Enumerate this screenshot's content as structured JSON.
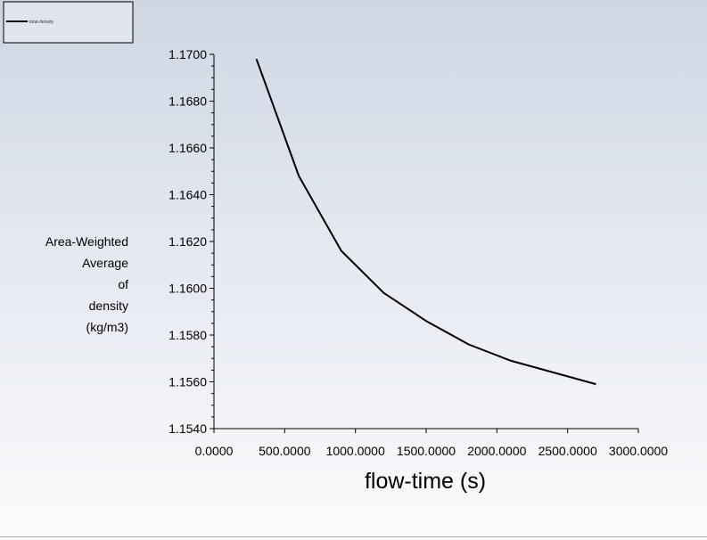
{
  "chart_data": {
    "type": "line",
    "title": "",
    "xlabel": "flow-time (s)",
    "ylabel_lines": [
      "Area-Weighted",
      "Average",
      "of",
      "density",
      "(kg/m3)"
    ],
    "xlim": [
      0,
      3000
    ],
    "ylim": [
      1.154,
      1.17
    ],
    "x_ticks": [
      0,
      500,
      1000,
      1500,
      2000,
      2500,
      3000
    ],
    "x_tick_labels": [
      "0.0000",
      "500.0000",
      "1000.0000",
      "1500.0000",
      "2000.0000",
      "2500.0000",
      "3000.0000"
    ],
    "y_ticks": [
      1.154,
      1.156,
      1.158,
      1.16,
      1.162,
      1.164,
      1.166,
      1.168,
      1.17
    ],
    "y_tick_labels": [
      "1.1540",
      "1.1560",
      "1.1580",
      "1.1600",
      "1.1620",
      "1.1640",
      "1.1660",
      "1.1680",
      "1.1700"
    ],
    "y_minor_per_major": 4,
    "grid": false,
    "legend_position": "top-left",
    "series": [
      {
        "name": "total-density",
        "color": "#000000",
        "x": [
          300,
          600,
          900,
          1200,
          1500,
          1800,
          2100,
          2400,
          2700
        ],
        "y": [
          1.1698,
          1.1648,
          1.1616,
          1.1598,
          1.1586,
          1.1576,
          1.1569,
          1.1564,
          1.1559
        ]
      }
    ]
  }
}
